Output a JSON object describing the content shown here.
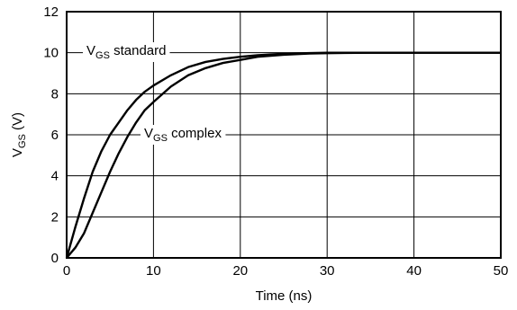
{
  "chart_data": {
    "type": "line",
    "xlabel": "Time (ns)",
    "ylabel": {
      "main": "V",
      "sub": "GS",
      "unit": " (V)"
    },
    "xlim": [
      0,
      50
    ],
    "ylim": [
      0,
      12
    ],
    "x_ticks": [
      0,
      10,
      20,
      30,
      40,
      50
    ],
    "y_ticks": [
      0,
      2,
      4,
      6,
      8,
      10,
      12
    ],
    "grid": true,
    "series": [
      {
        "name": "standard",
        "label": {
          "main": "V",
          "sub": "GS",
          "rest": " standard"
        },
        "color": "#000000",
        "points": [
          [
            0,
            0
          ],
          [
            1,
            1.5
          ],
          [
            2,
            2.9
          ],
          [
            3,
            4.2
          ],
          [
            4,
            5.2
          ],
          [
            5,
            6.0
          ],
          [
            6,
            6.6
          ],
          [
            7,
            7.2
          ],
          [
            8,
            7.7
          ],
          [
            9,
            8.1
          ],
          [
            10,
            8.4
          ],
          [
            12,
            8.9
          ],
          [
            14,
            9.3
          ],
          [
            16,
            9.55
          ],
          [
            18,
            9.7
          ],
          [
            20,
            9.8
          ],
          [
            22,
            9.88
          ],
          [
            25,
            9.95
          ],
          [
            28,
            9.98
          ],
          [
            30,
            10.0
          ],
          [
            35,
            10.0
          ],
          [
            40,
            10.0
          ],
          [
            50,
            10.0
          ]
        ]
      },
      {
        "name": "complex",
        "label": {
          "main": "V",
          "sub": "GS",
          "rest": " complex"
        },
        "color": "#000000",
        "points": [
          [
            0,
            0
          ],
          [
            1,
            0.5
          ],
          [
            2,
            1.2
          ],
          [
            3,
            2.2
          ],
          [
            4,
            3.2
          ],
          [
            5,
            4.2
          ],
          [
            6,
            5.1
          ],
          [
            7,
            5.9
          ],
          [
            8,
            6.6
          ],
          [
            9,
            7.2
          ],
          [
            10,
            7.6
          ],
          [
            12,
            8.35
          ],
          [
            14,
            8.9
          ],
          [
            16,
            9.25
          ],
          [
            18,
            9.5
          ],
          [
            20,
            9.65
          ],
          [
            22,
            9.8
          ],
          [
            25,
            9.9
          ],
          [
            28,
            9.96
          ],
          [
            30,
            9.98
          ],
          [
            35,
            10.0
          ],
          [
            40,
            10.0
          ],
          [
            50,
            10.0
          ]
        ]
      }
    ]
  }
}
